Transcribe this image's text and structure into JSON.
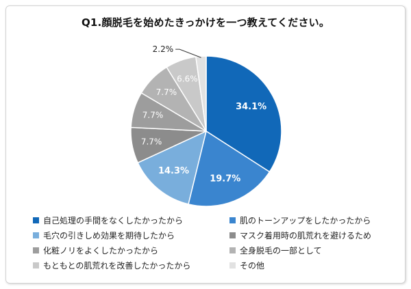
{
  "chart_data": {
    "type": "pie",
    "title": "Q1.顔脱毛を始めたきっかけを一つ教えてください。",
    "start_angle_deg": 0,
    "direction": "clockwise",
    "slices": [
      {
        "label": "自己処理の手間をなくしたかったから",
        "value": 34.1,
        "value_label": "34.1%",
        "color": "#1168b8",
        "label_color": "#ffffff"
      },
      {
        "label": "肌のトーンアップをしたかったから",
        "value": 19.7,
        "value_label": "19.7%",
        "color": "#3a85cf",
        "label_color": "#ffffff"
      },
      {
        "label": "毛穴の引きしめ効果を期待したから",
        "value": 14.3,
        "value_label": "14.3%",
        "color": "#79aedc",
        "label_color": "#ffffff"
      },
      {
        "label": "マスク着用時の肌荒れを避けるため",
        "value": 7.7,
        "value_label": "7.7%",
        "color": "#8c8c8c",
        "label_color": "#ffffff"
      },
      {
        "label": "化粧ノリをよくしたかったから",
        "value": 7.7,
        "value_label": "7.7%",
        "color": "#9d9d9d",
        "label_color": "#ffffff"
      },
      {
        "label": "全身脱毛の一部として",
        "value": 7.7,
        "value_label": "7.7%",
        "color": "#b3b3b3",
        "label_color": "#ffffff"
      },
      {
        "label": "もともとの肌荒れを改善したかったから",
        "value": 6.6,
        "value_label": "6.6%",
        "color": "#c9c9c9",
        "label_color": "#ffffff"
      },
      {
        "label": "その他",
        "value": 2.2,
        "value_label": "2.2%",
        "color": "#e2e2e2",
        "label_color": "#222222"
      }
    ],
    "legend_order": [
      0,
      1,
      2,
      3,
      4,
      5,
      6,
      7
    ],
    "legend_placement": "bottom"
  }
}
